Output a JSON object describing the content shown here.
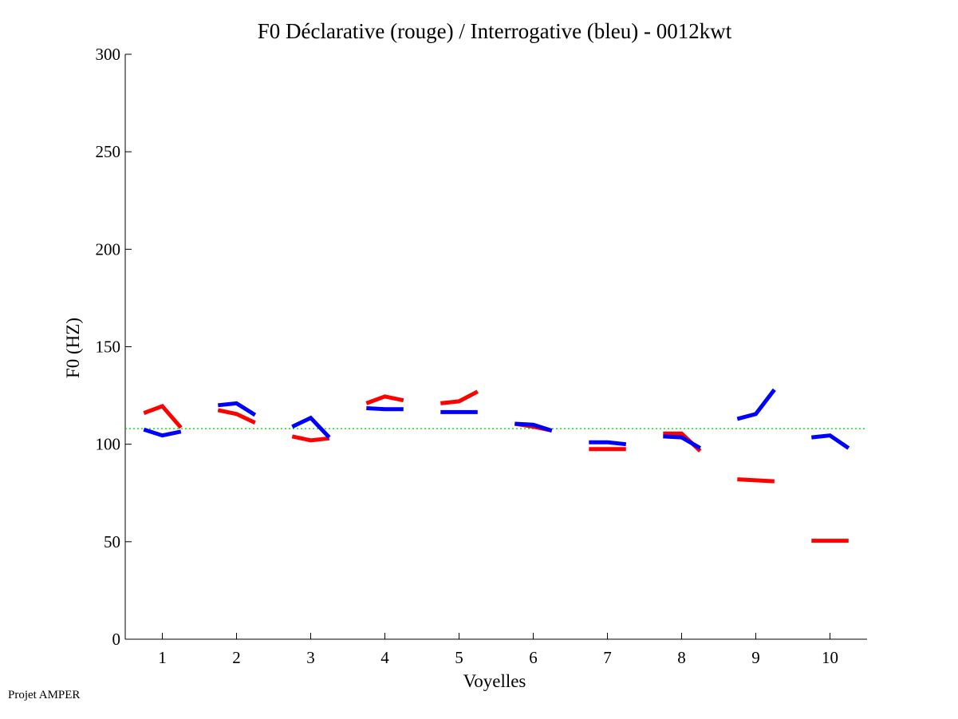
{
  "footer": {
    "text": "Projet AMPER"
  },
  "colors": {
    "declarative": "#ff0000",
    "interrogative": "#0000ff",
    "reference_line": "#00cc00"
  },
  "chart_data": {
    "type": "line",
    "title": "F0 Déclarative (rouge) / Interrogative (bleu) - 0012kwt",
    "xlabel": "Voyelles",
    "ylabel": "F0 (HZ)",
    "xlim": [
      0.5,
      10.5
    ],
    "ylim": [
      0,
      300
    ],
    "x_ticks": [
      1,
      2,
      3,
      4,
      5,
      6,
      7,
      8,
      9,
      10
    ],
    "y_ticks": [
      0,
      50,
      100,
      150,
      200,
      250,
      300
    ],
    "grid": false,
    "reference_line": {
      "y": 108,
      "style": "dotted"
    },
    "series": [
      {
        "key": "declarative",
        "segments": [
          {
            "vowel": 1,
            "points": [
              [
                0.75,
                116
              ],
              [
                1.0,
                119.5
              ],
              [
                1.25,
                108.5
              ]
            ]
          },
          {
            "vowel": 2,
            "points": [
              [
                1.75,
                117.5
              ],
              [
                2.0,
                115.5
              ],
              [
                2.25,
                111
              ]
            ]
          },
          {
            "vowel": 3,
            "points": [
              [
                2.75,
                104
              ],
              [
                3.0,
                102
              ],
              [
                3.25,
                103
              ]
            ]
          },
          {
            "vowel": 4,
            "points": [
              [
                3.75,
                121
              ],
              [
                4.0,
                124.5
              ],
              [
                4.25,
                122.5
              ]
            ]
          },
          {
            "vowel": 5,
            "points": [
              [
                4.75,
                121
              ],
              [
                5.0,
                122
              ],
              [
                5.25,
                127
              ]
            ]
          },
          {
            "vowel": 6,
            "points": [
              [
                5.75,
                110.5
              ],
              [
                6.0,
                109
              ],
              [
                6.25,
                107
              ]
            ]
          },
          {
            "vowel": 7,
            "points": [
              [
                6.75,
                97.5
              ],
              [
                7.0,
                97.5
              ],
              [
                7.25,
                97.5
              ]
            ]
          },
          {
            "vowel": 8,
            "points": [
              [
                7.75,
                105.5
              ],
              [
                8.0,
                105.5
              ],
              [
                8.25,
                96.5
              ]
            ]
          },
          {
            "vowel": 9,
            "points": [
              [
                8.75,
                82
              ],
              [
                9.0,
                81.5
              ],
              [
                9.25,
                81
              ]
            ]
          },
          {
            "vowel": 10,
            "points": [
              [
                9.75,
                50.5
              ],
              [
                10.0,
                50.5
              ],
              [
                10.25,
                50.5
              ]
            ]
          }
        ]
      },
      {
        "key": "interrogative",
        "segments": [
          {
            "vowel": 1,
            "points": [
              [
                0.75,
                107.5
              ],
              [
                1.0,
                104.5
              ],
              [
                1.25,
                106.5
              ]
            ]
          },
          {
            "vowel": 2,
            "points": [
              [
                1.75,
                120
              ],
              [
                2.0,
                121
              ],
              [
                2.25,
                115
              ]
            ]
          },
          {
            "vowel": 3,
            "points": [
              [
                2.75,
                109
              ],
              [
                3.0,
                113.5
              ],
              [
                3.25,
                103.5
              ]
            ]
          },
          {
            "vowel": 4,
            "points": [
              [
                3.75,
                118.5
              ],
              [
                4.0,
                118
              ],
              [
                4.25,
                118
              ]
            ]
          },
          {
            "vowel": 5,
            "points": [
              [
                4.75,
                116.5
              ],
              [
                5.0,
                116.5
              ],
              [
                5.25,
                116.5
              ]
            ]
          },
          {
            "vowel": 6,
            "points": [
              [
                5.75,
                110.5
              ],
              [
                6.0,
                110
              ],
              [
                6.25,
                107
              ]
            ]
          },
          {
            "vowel": 7,
            "points": [
              [
                6.75,
                101
              ],
              [
                7.0,
                101
              ],
              [
                7.25,
                100
              ]
            ]
          },
          {
            "vowel": 8,
            "points": [
              [
                7.75,
                104
              ],
              [
                8.0,
                103.5
              ],
              [
                8.25,
                98
              ]
            ]
          },
          {
            "vowel": 9,
            "points": [
              [
                8.75,
                113
              ],
              [
                9.0,
                115.5
              ],
              [
                9.25,
                128
              ]
            ]
          },
          {
            "vowel": 10,
            "points": [
              [
                9.75,
                103.5
              ],
              [
                10.0,
                104.5
              ],
              [
                10.25,
                98
              ]
            ]
          }
        ]
      }
    ]
  }
}
